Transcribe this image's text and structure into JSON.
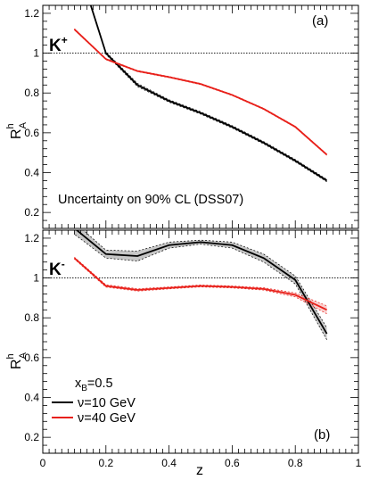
{
  "chart_data": [
    {
      "type": "line",
      "panel_label": "(a)",
      "particle": "K",
      "charge": "+",
      "note": "Uncertainty on 90% CL (DSS07)",
      "xlabel": "z",
      "ylabel_main": "R",
      "ylabel_sup": "h",
      "ylabel_sub": "A",
      "xlim": [
        0,
        1
      ],
      "ylim": [
        0.12,
        1.24
      ],
      "yticks": [
        0.2,
        0.4,
        0.6,
        0.8,
        1,
        1.2
      ],
      "ytick_labels": [
        "0.2",
        "0.4",
        "0.6",
        "0.8",
        "1",
        "1.2"
      ],
      "reference_line": 1,
      "grid": false,
      "series": [
        {
          "name": "ν=10 GeV",
          "color": "#000000",
          "x": [
            0.15,
            0.2,
            0.3,
            0.4,
            0.5,
            0.6,
            0.7,
            0.8,
            0.9
          ],
          "y": [
            1.25,
            1.0,
            0.84,
            0.76,
            0.7,
            0.63,
            0.55,
            0.46,
            0.36
          ],
          "band": [
            0.006,
            0.006,
            0.008,
            0.006,
            0.006,
            0.006,
            0.006,
            0.006,
            0.006
          ]
        },
        {
          "name": "ν=40 GeV",
          "color": "#e8201a",
          "x": [
            0.1,
            0.2,
            0.3,
            0.4,
            0.5,
            0.6,
            0.7,
            0.8,
            0.9
          ],
          "y": [
            1.12,
            0.97,
            0.91,
            0.88,
            0.845,
            0.79,
            0.72,
            0.63,
            0.49
          ],
          "band": [
            0.003,
            0.003,
            0.003,
            0.003,
            0.003,
            0.003,
            0.003,
            0.003,
            0.003
          ]
        }
      ]
    },
    {
      "type": "line",
      "panel_label": "(b)",
      "particle": "K",
      "charge": "-",
      "xlabel": "z",
      "ylabel_main": "R",
      "ylabel_sup": "h",
      "ylabel_sub": "A",
      "xlim": [
        0,
        1
      ],
      "xticks": [
        0,
        0.2,
        0.4,
        0.6,
        0.8,
        1
      ],
      "xtick_labels": [
        "0",
        "0.2",
        "0.4",
        "0.6",
        "0.8",
        "1"
      ],
      "ylim": [
        0.12,
        1.24
      ],
      "yticks": [
        0.2,
        0.4,
        0.6,
        0.8,
        1,
        1.2
      ],
      "ytick_labels": [
        "0.2",
        "0.4",
        "0.6",
        "0.8",
        "1",
        "1.2"
      ],
      "reference_line": 1,
      "grid": false,
      "legend": {
        "title_main": "x",
        "title_sub": "B",
        "title_value": "=0.5",
        "position": "bottom-left"
      },
      "series": [
        {
          "name": "ν=10 GeV",
          "color": "#000000",
          "x": [
            0.1,
            0.2,
            0.3,
            0.4,
            0.5,
            0.6,
            0.7,
            0.8,
            0.9
          ],
          "y": [
            1.25,
            1.12,
            1.11,
            1.165,
            1.18,
            1.165,
            1.1,
            0.99,
            0.72
          ],
          "band": [
            0.03,
            0.02,
            0.025,
            0.015,
            0.01,
            0.015,
            0.02,
            0.02,
            0.03
          ]
        },
        {
          "name": "ν=40 GeV",
          "color": "#e8201a",
          "x": [
            0.1,
            0.2,
            0.3,
            0.4,
            0.5,
            0.6,
            0.7,
            0.8,
            0.9
          ],
          "y": [
            1.1,
            0.96,
            0.94,
            0.95,
            0.96,
            0.955,
            0.945,
            0.915,
            0.84
          ],
          "band": [
            0.005,
            0.006,
            0.006,
            0.005,
            0.005,
            0.005,
            0.006,
            0.01,
            0.02
          ]
        }
      ]
    }
  ]
}
